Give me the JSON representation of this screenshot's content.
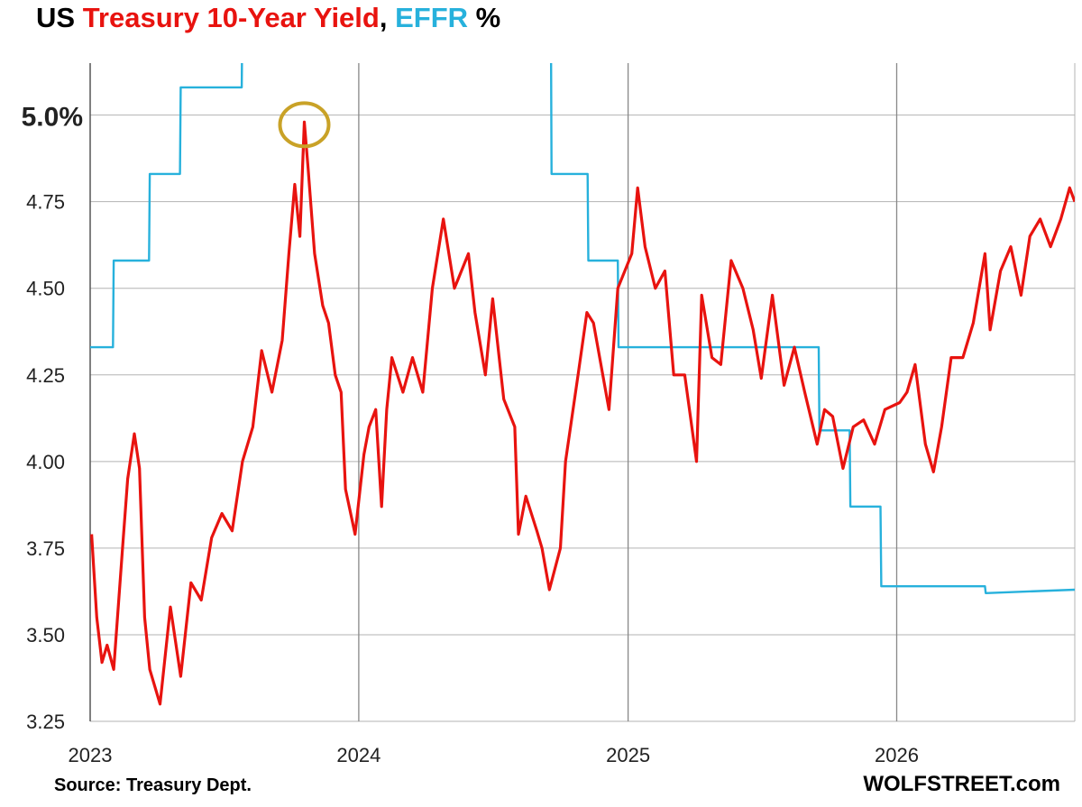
{
  "title": {
    "part1": "US ",
    "part2": "Treasury 10-Year Yield",
    "part3": ", ",
    "part4": "EFFR",
    "part5": " %"
  },
  "source": "Source: Treasury Dept.",
  "brand": "WOLFSTREET.com",
  "colors": {
    "yield": "#e8130f",
    "effr": "#27b1dc",
    "highlight": "#c9a227",
    "grid": "#9a9a9a"
  },
  "chart_data": {
    "type": "line",
    "title": "US Treasury 10-Year Yield, EFFR %",
    "xlabel": "",
    "ylabel": "",
    "x_range": [
      "2023-01-01",
      "2026-08-31"
    ],
    "ylim": [
      3.25,
      5.15
    ],
    "y_ticks": [
      "5.0%",
      "4.75",
      "4.50",
      "4.25",
      "4.00",
      "3.75",
      "3.50",
      "3.25"
    ],
    "y_tick_values": [
      5.0,
      4.75,
      4.5,
      4.25,
      4.0,
      3.75,
      3.5,
      3.25
    ],
    "x_ticks": [
      "2023",
      "2024",
      "2025",
      "2026"
    ],
    "x_tick_dates": [
      "2023-01-01",
      "2024-01-01",
      "2025-01-01",
      "2026-01-01"
    ],
    "grid": true,
    "annotation": {
      "type": "circle",
      "date": "2023-10-19",
      "value": 4.98
    },
    "series": [
      {
        "name": "Treasury 10-Year Yield",
        "points": [
          [
            "2023-01-03",
            3.79
          ],
          [
            "2023-01-10",
            3.55
          ],
          [
            "2023-01-17",
            3.42
          ],
          [
            "2023-01-24",
            3.47
          ],
          [
            "2023-02-02",
            3.4
          ],
          [
            "2023-02-14",
            3.75
          ],
          [
            "2023-02-21",
            3.95
          ],
          [
            "2023-03-02",
            4.08
          ],
          [
            "2023-03-09",
            3.98
          ],
          [
            "2023-03-16",
            3.55
          ],
          [
            "2023-03-23",
            3.4
          ],
          [
            "2023-04-06",
            3.3
          ],
          [
            "2023-04-20",
            3.58
          ],
          [
            "2023-05-04",
            3.38
          ],
          [
            "2023-05-18",
            3.65
          ],
          [
            "2023-06-01",
            3.6
          ],
          [
            "2023-06-15",
            3.78
          ],
          [
            "2023-06-29",
            3.85
          ],
          [
            "2023-07-13",
            3.8
          ],
          [
            "2023-07-27",
            4.0
          ],
          [
            "2023-08-10",
            4.1
          ],
          [
            "2023-08-22",
            4.32
          ],
          [
            "2023-09-05",
            4.2
          ],
          [
            "2023-09-19",
            4.35
          ],
          [
            "2023-09-28",
            4.6
          ],
          [
            "2023-10-06",
            4.8
          ],
          [
            "2023-10-13",
            4.65
          ],
          [
            "2023-10-19",
            4.98
          ],
          [
            "2023-10-24",
            4.85
          ],
          [
            "2023-11-02",
            4.6
          ],
          [
            "2023-11-13",
            4.45
          ],
          [
            "2023-11-21",
            4.4
          ],
          [
            "2023-11-30",
            4.25
          ],
          [
            "2023-12-08",
            4.2
          ],
          [
            "2023-12-14",
            3.92
          ],
          [
            "2023-12-27",
            3.79
          ],
          [
            "2024-01-08",
            4.02
          ],
          [
            "2024-01-15",
            4.1
          ],
          [
            "2024-01-24",
            4.15
          ],
          [
            "2024-02-01",
            3.87
          ],
          [
            "2024-02-08",
            4.15
          ],
          [
            "2024-02-15",
            4.3
          ],
          [
            "2024-03-01",
            4.2
          ],
          [
            "2024-03-14",
            4.3
          ],
          [
            "2024-03-28",
            4.2
          ],
          [
            "2024-04-10",
            4.5
          ],
          [
            "2024-04-25",
            4.7
          ],
          [
            "2024-05-10",
            4.5
          ],
          [
            "2024-05-29",
            4.6
          ],
          [
            "2024-06-07",
            4.43
          ],
          [
            "2024-06-21",
            4.25
          ],
          [
            "2024-07-01",
            4.47
          ],
          [
            "2024-07-16",
            4.18
          ],
          [
            "2024-07-31",
            4.1
          ],
          [
            "2024-08-05",
            3.79
          ],
          [
            "2024-08-15",
            3.9
          ],
          [
            "2024-08-30",
            3.8
          ],
          [
            "2024-09-06",
            3.75
          ],
          [
            "2024-09-16",
            3.63
          ],
          [
            "2024-10-01",
            3.75
          ],
          [
            "2024-10-08",
            4.0
          ],
          [
            "2024-10-25",
            4.25
          ],
          [
            "2024-11-06",
            4.43
          ],
          [
            "2024-11-15",
            4.4
          ],
          [
            "2024-12-06",
            4.15
          ],
          [
            "2024-12-18",
            4.5
          ],
          [
            "2025-01-06",
            4.6
          ],
          [
            "2025-01-14",
            4.79
          ],
          [
            "2025-01-24",
            4.62
          ],
          [
            "2025-02-07",
            4.5
          ],
          [
            "2025-02-20",
            4.55
          ],
          [
            "2025-03-04",
            4.25
          ],
          [
            "2025-03-19",
            4.25
          ],
          [
            "2025-04-04",
            4.0
          ],
          [
            "2025-04-11",
            4.48
          ],
          [
            "2025-04-25",
            4.3
          ],
          [
            "2025-05-07",
            4.28
          ],
          [
            "2025-05-21",
            4.58
          ],
          [
            "2025-06-06",
            4.5
          ],
          [
            "2025-06-20",
            4.38
          ],
          [
            "2025-07-01",
            4.24
          ],
          [
            "2025-07-16",
            4.48
          ],
          [
            "2025-08-01",
            4.22
          ],
          [
            "2025-08-15",
            4.33
          ],
          [
            "2025-08-29",
            4.2
          ],
          [
            "2025-09-15",
            4.05
          ],
          [
            "2025-09-25",
            4.15
          ],
          [
            "2025-10-06",
            4.13
          ],
          [
            "2025-10-20",
            3.98
          ],
          [
            "2025-11-03",
            4.1
          ],
          [
            "2025-11-17",
            4.12
          ],
          [
            "2025-12-02",
            4.05
          ],
          [
            "2025-12-16",
            4.15
          ],
          [
            "2026-01-05",
            4.17
          ],
          [
            "2026-01-15",
            4.2
          ],
          [
            "2026-01-26",
            4.28
          ],
          [
            "2026-02-09",
            4.05
          ],
          [
            "2026-02-20",
            3.97
          ],
          [
            "2026-03-03",
            4.1
          ],
          [
            "2026-03-16",
            4.3
          ],
          [
            "2026-04-01",
            4.3
          ],
          [
            "2026-04-15",
            4.4
          ],
          [
            "2026-05-01",
            4.6
          ],
          [
            "2026-05-08",
            4.38
          ],
          [
            "2026-05-22",
            4.55
          ],
          [
            "2026-06-05",
            4.62
          ],
          [
            "2026-06-19",
            4.48
          ],
          [
            "2026-07-01",
            4.65
          ],
          [
            "2026-07-15",
            4.7
          ],
          [
            "2026-07-29",
            4.62
          ],
          [
            "2026-08-12",
            4.7
          ],
          [
            "2026-08-24",
            4.79
          ],
          [
            "2026-08-31",
            4.75
          ]
        ]
      },
      {
        "name": "EFFR",
        "points": [
          [
            "2023-01-01",
            4.33
          ],
          [
            "2023-02-01",
            4.33
          ],
          [
            "2023-02-02",
            4.58
          ],
          [
            "2023-03-22",
            4.58
          ],
          [
            "2023-03-23",
            4.83
          ],
          [
            "2023-05-03",
            4.83
          ],
          [
            "2023-05-04",
            5.08
          ],
          [
            "2023-07-26",
            5.08
          ],
          [
            "2023-07-27",
            5.33
          ],
          [
            "2024-09-18",
            5.33
          ],
          [
            "2024-09-19",
            4.83
          ],
          [
            "2024-11-07",
            4.83
          ],
          [
            "2024-11-08",
            4.58
          ],
          [
            "2024-12-18",
            4.58
          ],
          [
            "2024-12-19",
            4.33
          ],
          [
            "2025-09-17",
            4.33
          ],
          [
            "2025-09-18",
            4.09
          ],
          [
            "2025-10-29",
            4.09
          ],
          [
            "2025-10-30",
            3.87
          ],
          [
            "2025-12-10",
            3.87
          ],
          [
            "2025-12-11",
            3.64
          ],
          [
            "2026-05-01",
            3.64
          ],
          [
            "2026-05-02",
            3.62
          ],
          [
            "2026-08-31",
            3.63
          ]
        ]
      }
    ]
  }
}
